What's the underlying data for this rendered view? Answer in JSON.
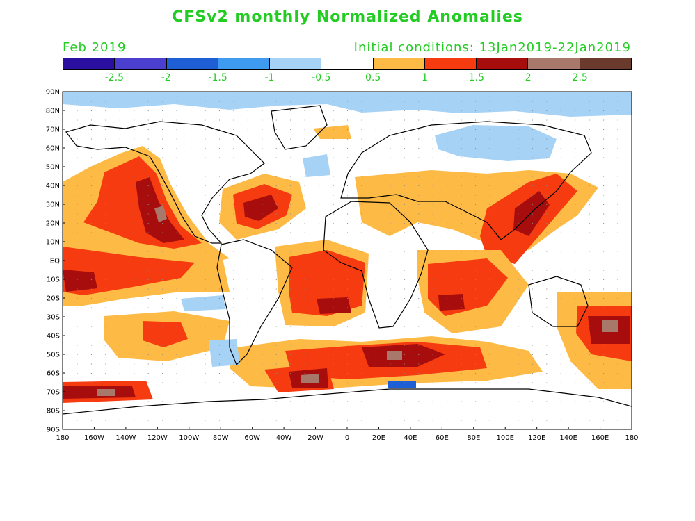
{
  "title": "CFSv2 monthly Normalized Anomalies",
  "forecast_month": "Feb 2019",
  "initial_conditions": "Initial conditions: 13Jan2019-22Jan2019",
  "colors": {
    "title_text": "#22cc22"
  },
  "colorbar": {
    "colors": [
      "#2b0fa0",
      "#4b3fd0",
      "#1e5fd6",
      "#3f9bf0",
      "#a6d2f6",
      "#ffffff",
      "#fdba45",
      "#f53b0f",
      "#a80d0d",
      "#a8786a",
      "#6a3a2c"
    ],
    "labels": [
      "-2.5",
      "-2",
      "-1.5",
      "-1",
      "-0.5",
      "0.5",
      "1",
      "1.5",
      "2",
      "2.5"
    ]
  },
  "lat_labels": [
    "90N",
    "80N",
    "70N",
    "60N",
    "50N",
    "40N",
    "30N",
    "20N",
    "10N",
    "EQ",
    "10S",
    "20S",
    "30S",
    "40S",
    "50S",
    "60S",
    "70S",
    "80S",
    "90S"
  ],
  "lon_labels": [
    "180",
    "160W",
    "140W",
    "120W",
    "100W",
    "80W",
    "60W",
    "40W",
    "20W",
    "0",
    "20E",
    "40E",
    "60E",
    "80E",
    "100E",
    "120E",
    "140E",
    "160E",
    "180"
  ]
}
